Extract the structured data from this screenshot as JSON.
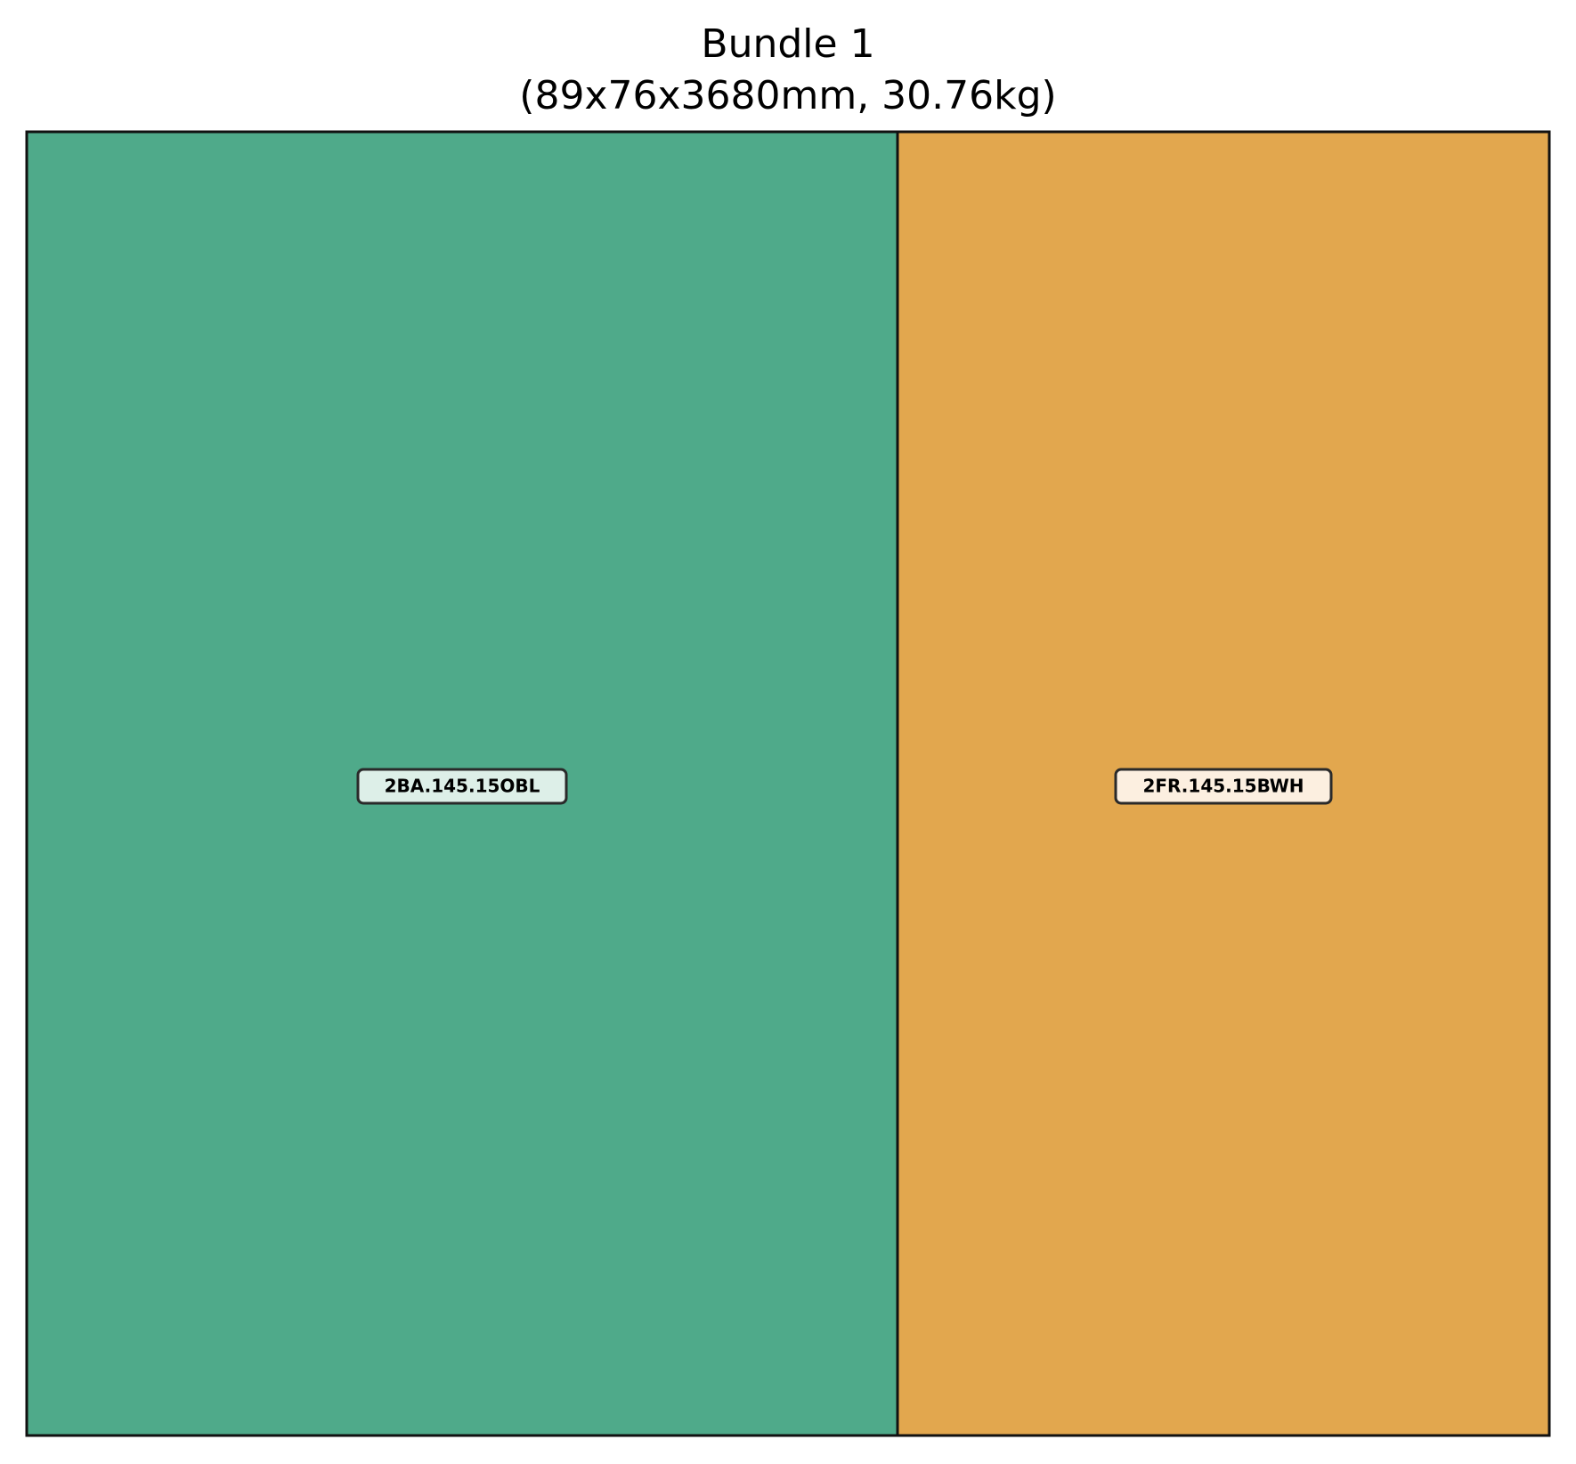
{
  "title": {
    "line1": "Bundle 1",
    "line2": "(89x76x3680mm, 30.76kg)"
  },
  "pieces": [
    {
      "label": "2BA.145.15OBL",
      "color": "#4FAA8A",
      "label_bg": "#DDEFE8"
    },
    {
      "label": "2FR.145.15BWH",
      "color": "#E2A74E",
      "label_bg": "#FCEFE0"
    }
  ],
  "colors": {
    "outline": "#111111",
    "label_border": "#2a2a2a",
    "label_text": "#000000"
  }
}
